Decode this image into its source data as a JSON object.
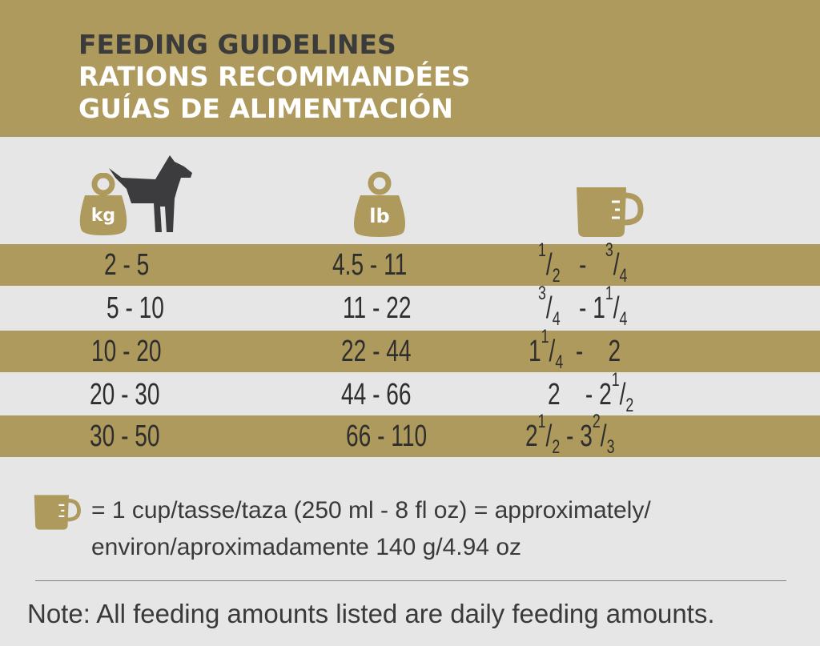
{
  "header": {
    "title_en": "FEEDING GUIDELINES",
    "title_fr": "RATIONS RECOMMANDÉES",
    "title_es": "GUÍAS DE ALIMENTACIÓN"
  },
  "columns": {
    "kg_icon_label": "kg",
    "lb_icon_label": "lb"
  },
  "rows": [
    {
      "kg": "2 - 5",
      "lb": "4.5 - 11",
      "cups": "1/2 - 3/4"
    },
    {
      "kg": "5 - 10",
      "lb": "11 - 22",
      "cups": "3/4 - 1 1/4"
    },
    {
      "kg": "10 - 20",
      "lb": "22 - 44",
      "cups": "1 1/4 - 2"
    },
    {
      "kg": "20 - 30",
      "lb": "44 - 66",
      "cups": "2 - 2 1/2"
    },
    {
      "kg": "30 - 50",
      "lb": "66 - 110",
      "cups": "2 1/2 - 3 2/3"
    }
  ],
  "legend": {
    "line1": "= 1 cup/tasse/taza (250 ml - 8 fl oz) = approximately/",
    "line2": "environ/aproximadamente 140 g/4.94 oz"
  },
  "note": "Note: All feeding amounts listed are daily feeding amounts.",
  "colors": {
    "gold": "#ae9a5c",
    "background": "#e6e6e6",
    "text": "#2e2e2e"
  },
  "icons": [
    "kg-weight-icon",
    "dog-icon",
    "lb-weight-icon",
    "measuring-cup-icon"
  ]
}
